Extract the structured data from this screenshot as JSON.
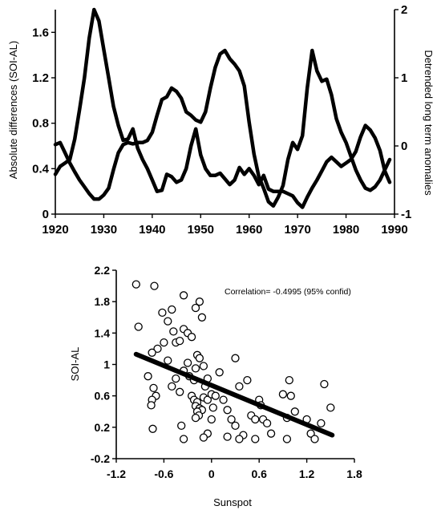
{
  "chart_data": [
    {
      "type": "line",
      "title": "",
      "xlabel": "",
      "ylabel": "Absolute differences (SOI-AL)",
      "y2label": "Detrended long term anomalies",
      "xlim": [
        1920,
        1990
      ],
      "ylim": [
        0,
        1.8
      ],
      "y2lim": [
        -1,
        2
      ],
      "xticks": [
        "1920",
        "1930",
        "1940",
        "1950",
        "1960",
        "1970",
        "1980",
        "1990"
      ],
      "yticks": [
        "0",
        "0.4",
        "0.8",
        "1.2",
        "1.6"
      ],
      "y2ticks": [
        "-1",
        "0",
        "1",
        "2"
      ],
      "series": [
        {
          "axis": "left",
          "x": [
            1920,
            1921,
            1922,
            1923,
            1924,
            1925,
            1926,
            1927,
            1928,
            1929,
            1930,
            1931,
            1932,
            1933,
            1934,
            1935,
            1936,
            1937,
            1938,
            1939,
            1940,
            1941,
            1942,
            1943,
            1944,
            1945,
            1946,
            1947,
            1948,
            1949,
            1950,
            1951,
            1952,
            1953,
            1954,
            1955,
            1956,
            1957,
            1958,
            1959,
            1960,
            1961,
            1962,
            1963,
            1964,
            1965,
            1966,
            1967,
            1968,
            1969,
            1970,
            1971,
            1972,
            1973,
            1974,
            1975,
            1976,
            1977,
            1978,
            1979,
            1980,
            1981,
            1982,
            1983,
            1984,
            1985,
            1986,
            1987,
            1988,
            1989
          ],
          "values": [
            0.35,
            0.42,
            0.45,
            0.48,
            0.66,
            0.92,
            1.2,
            1.55,
            1.8,
            1.7,
            1.45,
            1.2,
            0.95,
            0.78,
            0.65,
            0.66,
            0.75,
            0.58,
            0.48,
            0.4,
            0.3,
            0.2,
            0.21,
            0.35,
            0.33,
            0.28,
            0.3,
            0.4,
            0.6,
            0.75,
            0.52,
            0.4,
            0.34,
            0.34,
            0.36,
            0.31,
            0.26,
            0.3,
            0.41,
            0.35,
            0.4,
            0.34,
            0.26,
            0.34,
            0.22,
            0.2,
            0.2,
            0.2,
            0.18,
            0.16,
            0.1,
            0.06,
            0.15,
            0.23,
            0.3,
            0.38,
            0.46,
            0.5,
            0.46,
            0.42,
            0.45,
            0.48,
            0.55,
            0.68,
            0.78,
            0.74,
            0.67,
            0.56,
            0.38,
            0.28
          ]
        },
        {
          "axis": "right",
          "x": [
            1920,
            1921,
            1922,
            1923,
            1924,
            1925,
            1926,
            1927,
            1928,
            1929,
            1930,
            1931,
            1932,
            1933,
            1934,
            1935,
            1936,
            1937,
            1938,
            1939,
            1940,
            1941,
            1942,
            1943,
            1944,
            1945,
            1946,
            1947,
            1948,
            1949,
            1950,
            1951,
            1952,
            1953,
            1954,
            1955,
            1956,
            1957,
            1958,
            1959,
            1960,
            1961,
            1962,
            1963,
            1964,
            1965,
            1966,
            1967,
            1968,
            1969,
            1970,
            1971,
            1972,
            1973,
            1974,
            1975,
            1976,
            1977,
            1978,
            1979,
            1980,
            1981,
            1982,
            1983,
            1984,
            1985,
            1986,
            1987,
            1988,
            1989
          ],
          "values": [
            0.02,
            0.05,
            -0.1,
            -0.25,
            -0.38,
            -0.5,
            -0.6,
            -0.7,
            -0.78,
            -0.78,
            -0.72,
            -0.62,
            -0.35,
            -0.1,
            0.02,
            0.05,
            0.03,
            0.05,
            0.05,
            0.08,
            0.2,
            0.45,
            0.68,
            0.72,
            0.85,
            0.8,
            0.7,
            0.5,
            0.45,
            0.38,
            0.35,
            0.5,
            0.85,
            1.15,
            1.35,
            1.4,
            1.28,
            1.2,
            1.1,
            0.88,
            0.35,
            -0.12,
            -0.45,
            -0.62,
            -0.82,
            -0.88,
            -0.75,
            -0.58,
            -0.2,
            0.05,
            -0.05,
            0.15,
            0.85,
            1.4,
            1.1,
            0.95,
            0.98,
            0.75,
            0.4,
            0.2,
            0.05,
            -0.15,
            -0.35,
            -0.5,
            -0.62,
            -0.65,
            -0.6,
            -0.5,
            -0.35,
            -0.2
          ]
        }
      ]
    },
    {
      "type": "scatter",
      "title": "",
      "xlabel": "Sunspot",
      "ylabel": "SOI-AL",
      "xlim": [
        -1.2,
        1.8
      ],
      "ylim": [
        -0.2,
        2.2
      ],
      "xticks": [
        "-1.2",
        "-0.6",
        "0",
        "0.6",
        "1.2",
        "1.8"
      ],
      "yticks": [
        "-0.2",
        "0.2",
        "0.6",
        "1",
        "1.4",
        "1.8",
        "2.2"
      ],
      "annotation": "Correlation= -0.4995 (95% confid)",
      "regression": {
        "x": [
          -0.95,
          1.52
        ],
        "y": [
          1.13,
          0.1
        ]
      },
      "points": [
        [
          -0.95,
          2.02
        ],
        [
          -0.72,
          2.0
        ],
        [
          -0.92,
          1.48
        ],
        [
          -0.68,
          1.2
        ],
        [
          -0.75,
          1.15
        ],
        [
          -0.8,
          0.85
        ],
        [
          -0.73,
          0.7
        ],
        [
          -0.7,
          0.6
        ],
        [
          -0.75,
          0.55
        ],
        [
          -0.76,
          0.48
        ],
        [
          -0.74,
          0.18
        ],
        [
          -0.62,
          1.66
        ],
        [
          -0.55,
          1.55
        ],
        [
          -0.48,
          1.42
        ],
        [
          -0.45,
          1.28
        ],
        [
          -0.4,
          1.3
        ],
        [
          -0.35,
          1.45
        ],
        [
          -0.3,
          1.4
        ],
        [
          -0.25,
          1.35
        ],
        [
          -0.2,
          1.72
        ],
        [
          -0.15,
          1.8
        ],
        [
          -0.12,
          1.6
        ],
        [
          -0.35,
          1.88
        ],
        [
          -0.5,
          1.7
        ],
        [
          -0.6,
          1.28
        ],
        [
          -0.55,
          1.05
        ],
        [
          -0.45,
          0.82
        ],
        [
          -0.5,
          0.72
        ],
        [
          -0.4,
          0.65
        ],
        [
          -0.35,
          0.92
        ],
        [
          -0.3,
          1.02
        ],
        [
          -0.28,
          0.85
        ],
        [
          -0.22,
          0.8
        ],
        [
          -0.2,
          0.95
        ],
        [
          -0.18,
          1.12
        ],
        [
          -0.15,
          1.08
        ],
        [
          -0.1,
          0.98
        ],
        [
          -0.05,
          0.82
        ],
        [
          -0.08,
          0.72
        ],
        [
          -0.25,
          0.6
        ],
        [
          -0.22,
          0.55
        ],
        [
          -0.18,
          0.52
        ],
        [
          -0.2,
          0.47
        ],
        [
          -0.15,
          0.44
        ],
        [
          -0.12,
          0.42
        ],
        [
          -0.18,
          0.4
        ],
        [
          -0.16,
          0.35
        ],
        [
          -0.2,
          0.32
        ],
        [
          -0.1,
          0.58
        ],
        [
          -0.05,
          0.55
        ],
        [
          0.0,
          0.62
        ],
        [
          0.05,
          0.6
        ],
        [
          0.02,
          0.45
        ],
        [
          0.0,
          0.3
        ],
        [
          -0.05,
          0.12
        ],
        [
          -0.1,
          0.07
        ],
        [
          -0.38,
          0.22
        ],
        [
          -0.35,
          0.05
        ],
        [
          0.1,
          0.9
        ],
        [
          0.15,
          0.55
        ],
        [
          0.2,
          0.42
        ],
        [
          0.25,
          0.3
        ],
        [
          0.3,
          1.08
        ],
        [
          0.35,
          0.72
        ],
        [
          0.3,
          0.22
        ],
        [
          0.4,
          0.1
        ],
        [
          0.45,
          0.8
        ],
        [
          0.5,
          0.35
        ],
        [
          0.55,
          0.3
        ],
        [
          0.6,
          0.55
        ],
        [
          0.62,
          0.48
        ],
        [
          0.65,
          0.3
        ],
        [
          0.7,
          0.25
        ],
        [
          0.75,
          0.12
        ],
        [
          0.55,
          0.05
        ],
        [
          0.35,
          0.05
        ],
        [
          0.2,
          0.08
        ],
        [
          0.9,
          0.62
        ],
        [
          0.95,
          0.32
        ],
        [
          0.98,
          0.8
        ],
        [
          1.0,
          0.6
        ],
        [
          1.05,
          0.4
        ],
        [
          0.95,
          0.05
        ],
        [
          1.2,
          0.3
        ],
        [
          1.25,
          0.12
        ],
        [
          1.3,
          0.05
        ],
        [
          1.38,
          0.25
        ],
        [
          1.42,
          0.75
        ],
        [
          1.5,
          0.45
        ]
      ]
    }
  ]
}
